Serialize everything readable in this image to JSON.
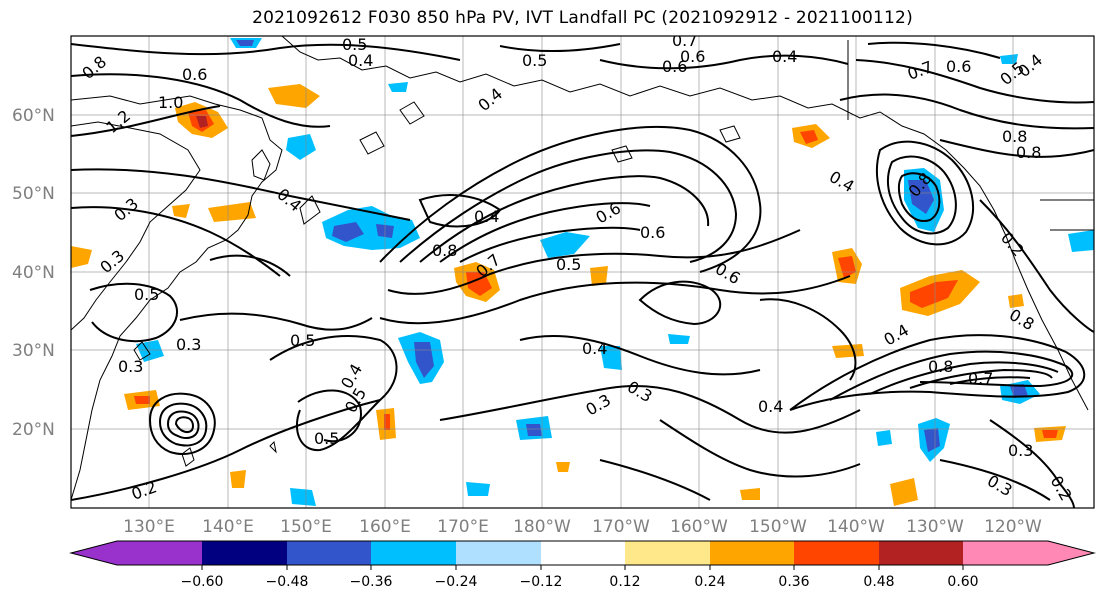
{
  "title": "2021092612 F030 850 hPa PV, IVT Landfall PC (2021092912 - 2021100112)",
  "map": {
    "lat_labels": [
      "60°N",
      "50°N",
      "40°N",
      "30°N",
      "20°N"
    ],
    "lon_labels": [
      "130°E",
      "140°E",
      "150°E",
      "160°E",
      "170°E",
      "180°W",
      "170°W",
      "160°W",
      "150°W",
      "140°W",
      "130°W",
      "120°W"
    ],
    "contour_labels": [
      "0.8",
      "0.6",
      "1.0",
      "1.2",
      "0.5",
      "0.4",
      "0.5",
      "0.4",
      "0.7",
      "0.6",
      "0.4",
      "0.6",
      "0.7",
      "0.6",
      "0.5",
      "0.4",
      "0.8",
      "0.8",
      "0.4",
      "0.8",
      "0.3",
      "0.4",
      "0.4",
      "0.8",
      "0.6",
      "0.7",
      "0.5",
      "0.6",
      "0.5",
      "0.3",
      "0.5",
      "0.3",
      "0.3",
      "0.5",
      "0.4",
      "0.5",
      "0.4",
      "0.3",
      "0.3",
      "0.4",
      "0.6",
      "0.8",
      "0.7",
      "0.2",
      "0.3",
      "0.3",
      "0.2",
      "0.2",
      "0.4",
      "0.8"
    ]
  },
  "colorbar": {
    "tick_labels": [
      "−0.60",
      "−0.48",
      "−0.36",
      "−0.24",
      "−0.12",
      "0.12",
      "0.24",
      "0.36",
      "0.48",
      "0.60"
    ],
    "colors": [
      "#9932cc",
      "#000080",
      "#3355cc",
      "#00bfff",
      "#b0e0ff",
      "#ffffff",
      "#ffe88a",
      "#ffa500",
      "#ff4500",
      "#b22222",
      "#ff88b4"
    ]
  }
}
